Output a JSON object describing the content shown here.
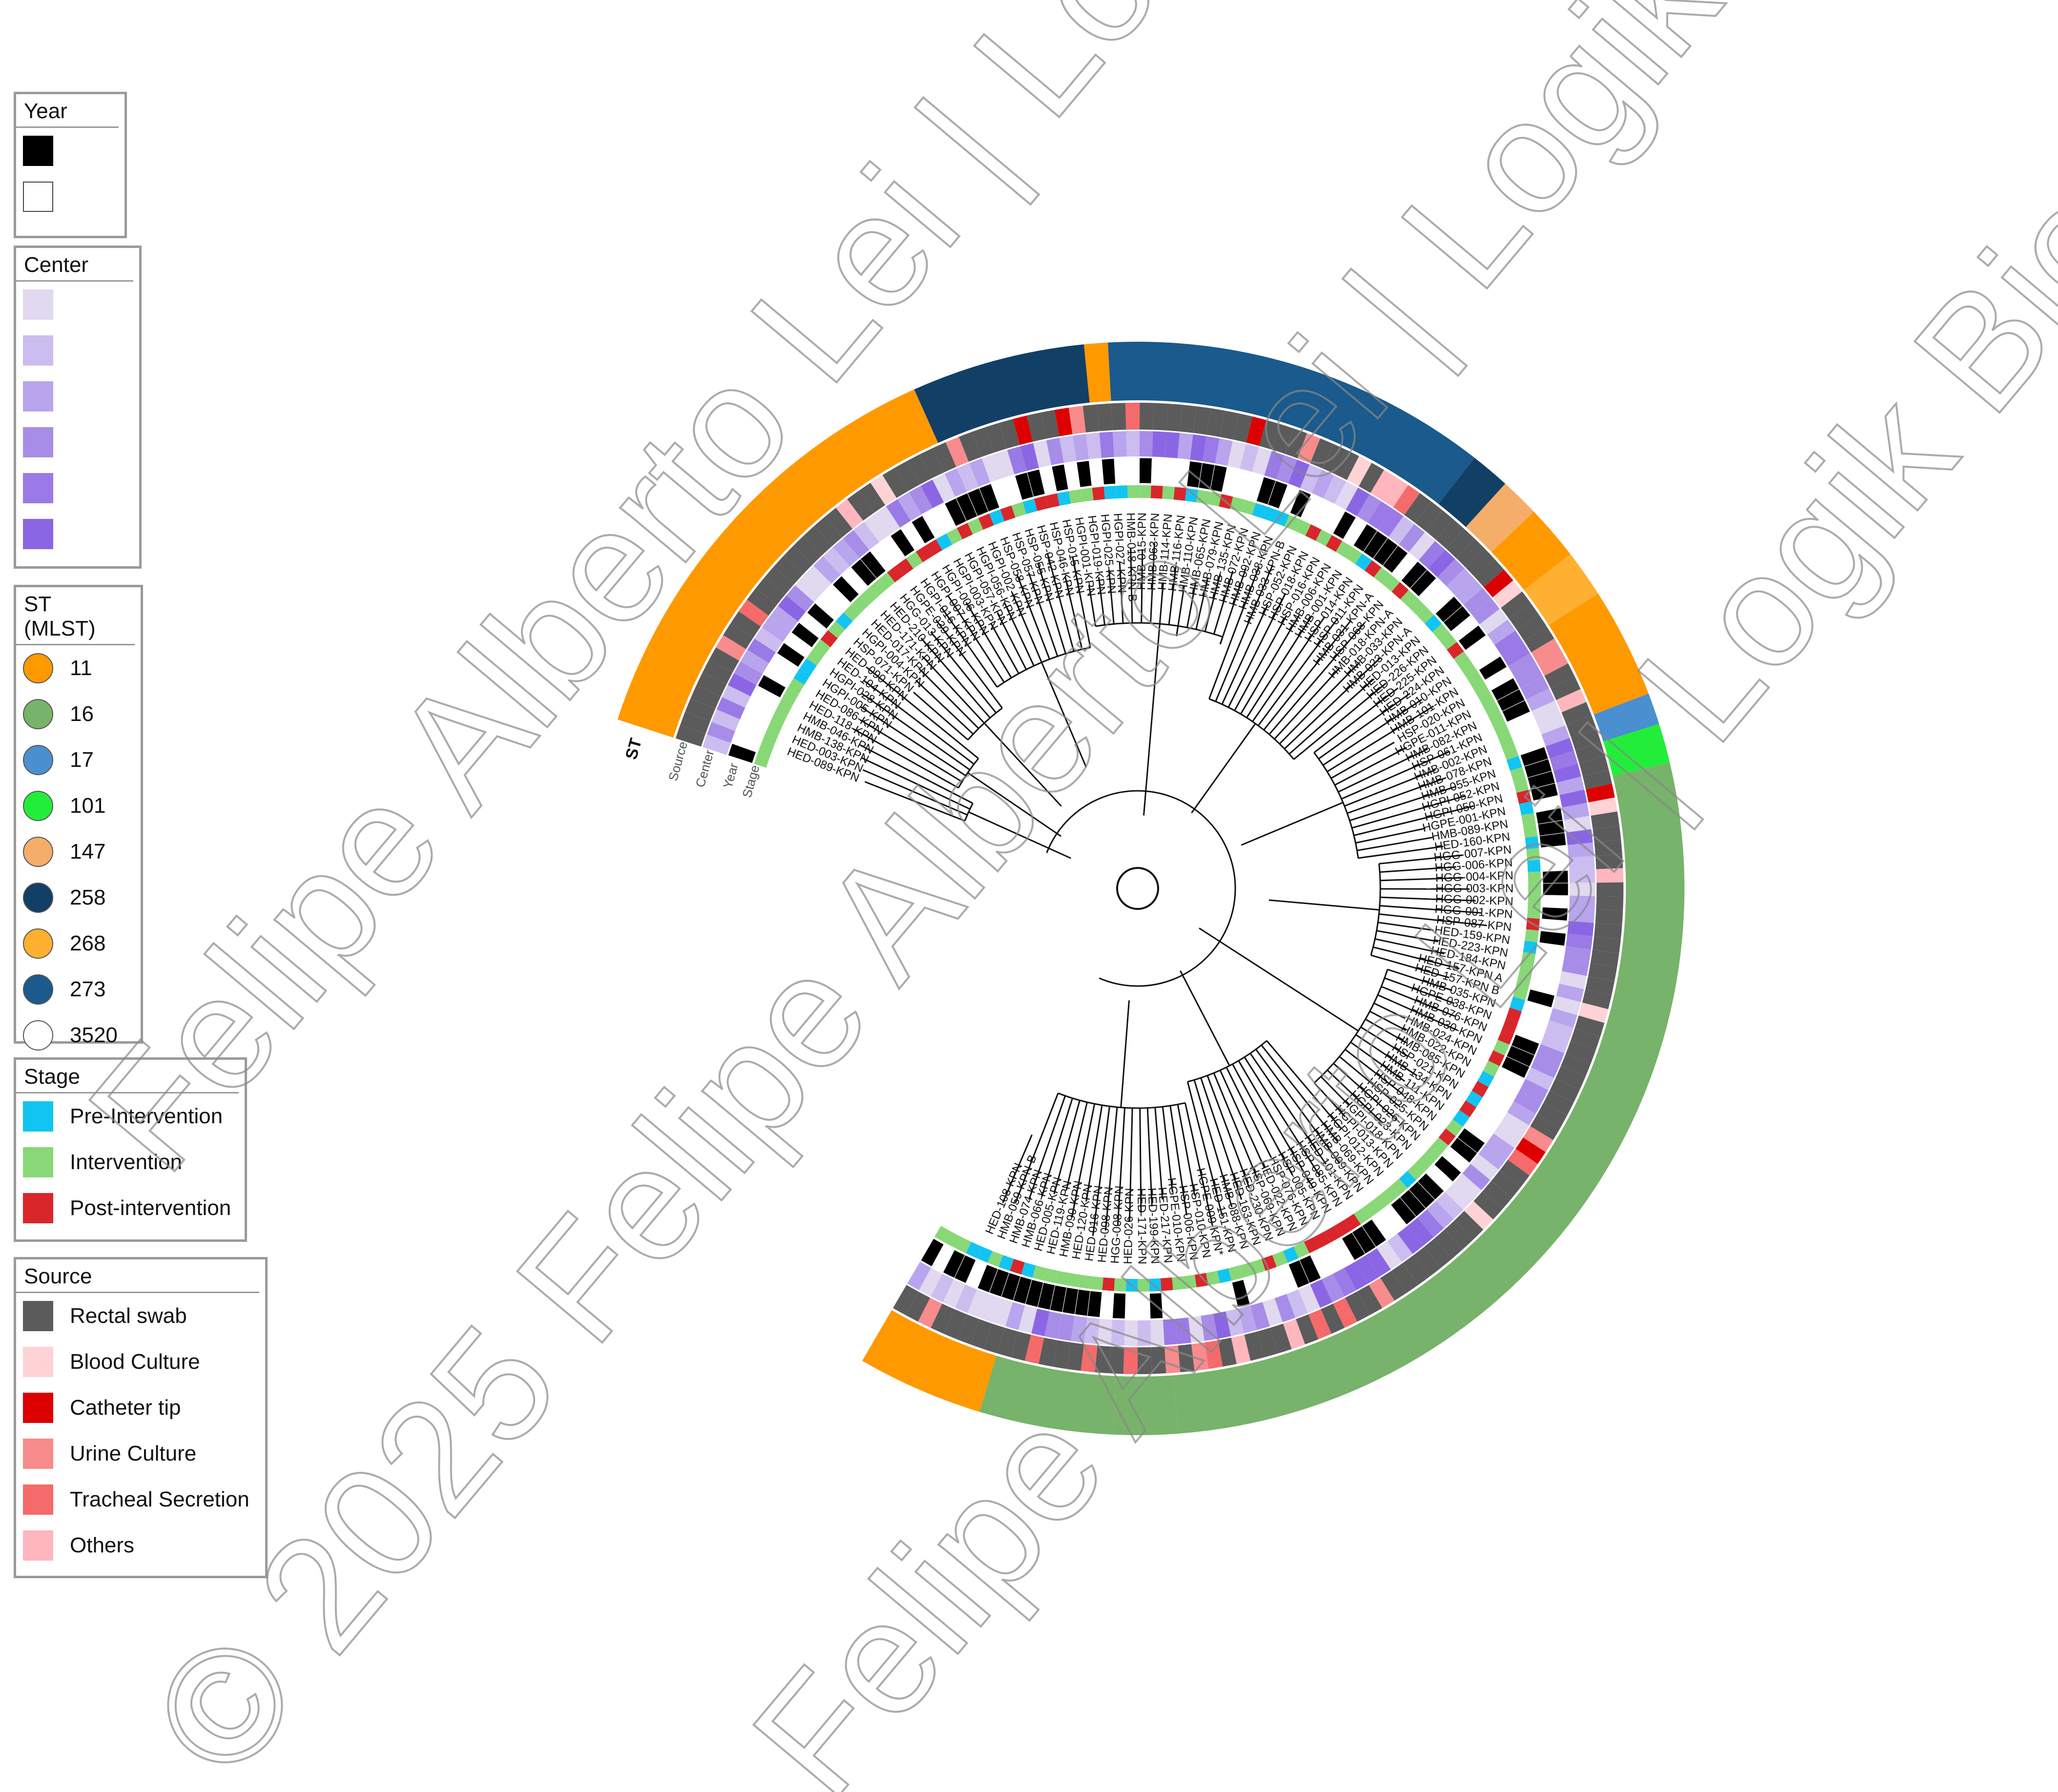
{
  "legends": {
    "year": {
      "title": "Year",
      "items": [
        {
          "label": "",
          "color": "#000000"
        },
        {
          "label": "",
          "color": "#ffffff"
        }
      ]
    },
    "center": {
      "title": "Center",
      "items": [
        {
          "label": "",
          "color": "#e0d9ef"
        },
        {
          "label": "",
          "color": "#cbbdf0"
        },
        {
          "label": "",
          "color": "#b9a4ee"
        },
        {
          "label": "",
          "color": "#a78de8"
        },
        {
          "label": "",
          "color": "#9a7ae6"
        },
        {
          "label": "",
          "color": "#8b66e4"
        }
      ]
    },
    "st": {
      "title": "ST (MLST)",
      "items": [
        {
          "label": "11",
          "color": "#ff9900"
        },
        {
          "label": "16",
          "color": "#77b36a"
        },
        {
          "label": "17",
          "color": "#4a8fcf"
        },
        {
          "label": "101",
          "color": "#22ee3a"
        },
        {
          "label": "147",
          "color": "#f5ad6a"
        },
        {
          "label": "258",
          "color": "#123f66"
        },
        {
          "label": "268",
          "color": "#ffb030"
        },
        {
          "label": "273",
          "color": "#1a5a8c"
        },
        {
          "label": "3520",
          "color": "#ffffff"
        }
      ]
    },
    "stage": {
      "title": "Stage",
      "items": [
        {
          "label": "Pre-Intervention",
          "color": "#12c4f2"
        },
        {
          "label": "Intervention",
          "color": "#88d877"
        },
        {
          "label": "Post-intervention",
          "color": "#d9262b"
        }
      ]
    },
    "source": {
      "title": "Source",
      "items": [
        {
          "label": "Rectal swab",
          "color": "#5b5b5b"
        },
        {
          "label": "Blood Culture",
          "color": "#ffd2d6"
        },
        {
          "label": "Catheter tip",
          "color": "#dd0000"
        },
        {
          "label": "Urine Culture",
          "color": "#f88b8b"
        },
        {
          "label": "Tracheal Secretion",
          "color": "#f56a6a"
        },
        {
          "label": "Others",
          "color": "#ffb6bd"
        }
      ]
    }
  },
  "ring_labels": [
    "ST",
    "Source",
    "Center",
    "Year",
    "Stage"
  ],
  "leaves": [
    "HED-089-KPN",
    "HED-003-KPN",
    "HMB-138-KPN",
    "HMB-046-KPN",
    "HED-118-KPN",
    "HED-086-KPN",
    "HGPI-005-KPN",
    "HGPI-028-KPN",
    "HED-104-KPN",
    "HED-090-KPN",
    "HSP-071-KPN",
    "HGPI-004-KPN",
    "HED-017-KPN",
    "HED-171-KPN",
    "HED-210-KPN",
    "HGG-013-KPN",
    "HGPE-039-KPN",
    "HGPI-016-KPN",
    "HGPI-007-KPN",
    "HGPI-006-KPN",
    "HGPI-003-KPN",
    "HGPI-057-KPN",
    "HGPI-056-KPN",
    "HGPI-002-KPN",
    "HSP-058-KPN",
    "HSP-057-KPN",
    "HSP-055-KPN",
    "HSP-042-KPN",
    "HSP-046-KPN",
    "HSP-015-KPN",
    "HGPI-001-KPN",
    "HGPI-019-KPN",
    "HGPI-025-KPN",
    "HGPI-027-KPN",
    "HMB-018-KPN-B",
    "HMB-015-KPN",
    "HMB-063-KPN",
    "HMB-114-KPN",
    "HMB-116-KPN",
    "HMB-110-KPN",
    "HMB-065-KPN",
    "HMB-079-KPN",
    "HMB-135-KPN",
    "HMB-072-KPN",
    "HMB-092-KPN",
    "HMB-038-KPN",
    "HMB-033-KPN-B",
    "HSP-052-KPN",
    "HSP-018-KPN",
    "HSP-016-KPN",
    "HMB-006-KPN",
    "HMB-001-KPN",
    "HSP-014-KPN",
    "HSP-011-KPN",
    "HMB-031-KPN-A",
    "HSP-068-KPN",
    "HMB-018-KPN-A",
    "HMB-033-KPN",
    "HMB-023-KPN-A",
    "HED-013-KPN",
    "HED-226-KPN",
    "HED-225-KPN",
    "HED-224-KPN",
    "HMB-010-KPN",
    "HMB-101-KPN",
    "HSP-020-KPN",
    "HGPE-011-KPN",
    "HMB-082-KPN",
    "HSP-061-KPN",
    "HMB-002-KPN",
    "HMB-078-KPN",
    "HMB-055-KPN",
    "HGPI-052-KPN",
    "HGPI-050-KPN",
    "HGPE-001-KPN",
    "HMB-089-KPN",
    "HED-160-KPN",
    "HGG-007-KPN",
    "HGG-006-KPN",
    "HGG-004-KPN",
    "HGG-003-KPN",
    "HGG-002-KPN",
    "HGG-001-KPN",
    "HSP-087-KPN",
    "HED-159-KPN",
    "HED-223-KPN",
    "HED-184-KPN",
    "HED-157-KPN A",
    "HED-157-KPN B",
    "HMB-035-KPN",
    "HGPE-038-KPN",
    "HMB-076-KPN",
    "HMB-030-KPN",
    "HMB-024-KPN",
    "HMB-022-KPN",
    "HMB-085-KPN",
    "HSP-021-KPN",
    "HMB-134-KPN",
    "HMB-111-KPN",
    "HSP-048-KPN",
    "HSP-025-KPN",
    "HGPI-026-KPN",
    "HGPI-023-KPN",
    "HGPI-018-KPN",
    "HGPI-013-KPN",
    "HGPI-012-KPN",
    "HMB-069-KPN",
    "HMB-009-KPN",
    "HED-101-KPN",
    "HSP-085-KPN",
    "HSP-049-KPN",
    "HSP-005-KPN",
    "HSP-076-KPN",
    "HED-022-KPN",
    "HSP-069-KPN",
    "HED-230-KPN",
    "HED-163-KPN",
    "HMB-088-KPN",
    "HED-151-KPN",
    "HGPE-009-KPN*",
    "HSP-010-KPN",
    "HSP-006-KPN",
    "HGPE-010-KPN",
    "HED-217-KPN",
    "HED-199-KPN",
    "HED-171-KPN",
    "HED-026-KPN",
    "HGG-008-KPN",
    "HED-098-KPN",
    "HED-016-KPN",
    "HED-120-KPN",
    "HMB-090-KPN",
    "HED-119-KPN",
    "HED-005-KPN",
    "HMB-066-KPN",
    "HMB-074-KPN",
    "HMB-059-KPN-B",
    "HED-108-KPN"
  ],
  "st_segments": [
    {
      "st": "11",
      "from": 0,
      "to": 57
    },
    {
      "st": "258",
      "from": 57,
      "to": 79
    },
    {
      "st": "11",
      "from": 79,
      "to": 82
    },
    {
      "st": "273",
      "from": 82,
      "to": 131
    },
    {
      "st": "258",
      "from": 131,
      "to": 136
    },
    {
      "st": "147",
      "from": 136,
      "to": 141
    },
    {
      "st": "11",
      "from": 141,
      "to": 148
    },
    {
      "st": "268",
      "from": 148,
      "to": 154
    },
    {
      "st": "11",
      "from": 154,
      "to": 168
    },
    {
      "st": "17",
      "from": 168,
      "to": 172
    },
    {
      "st": "101",
      "from": 172,
      "to": 177
    },
    {
      "st": "16",
      "from": 177,
      "to": 295
    },
    {
      "st": "16",
      "from": 295,
      "to": 303
    },
    {
      "st": "16",
      "from": 303,
      "to": 320
    },
    {
      "st": "11",
      "from": 320,
      "to": 336
    }
  ],
  "watermark": {
    "lines": [
      "© 2025 Felipe Alberto Lei | Logik Bio",
      "Felipe Alberto Lei | Logik Bio",
      "Felipe Alberto Lei | Logik Bio"
    ]
  }
}
